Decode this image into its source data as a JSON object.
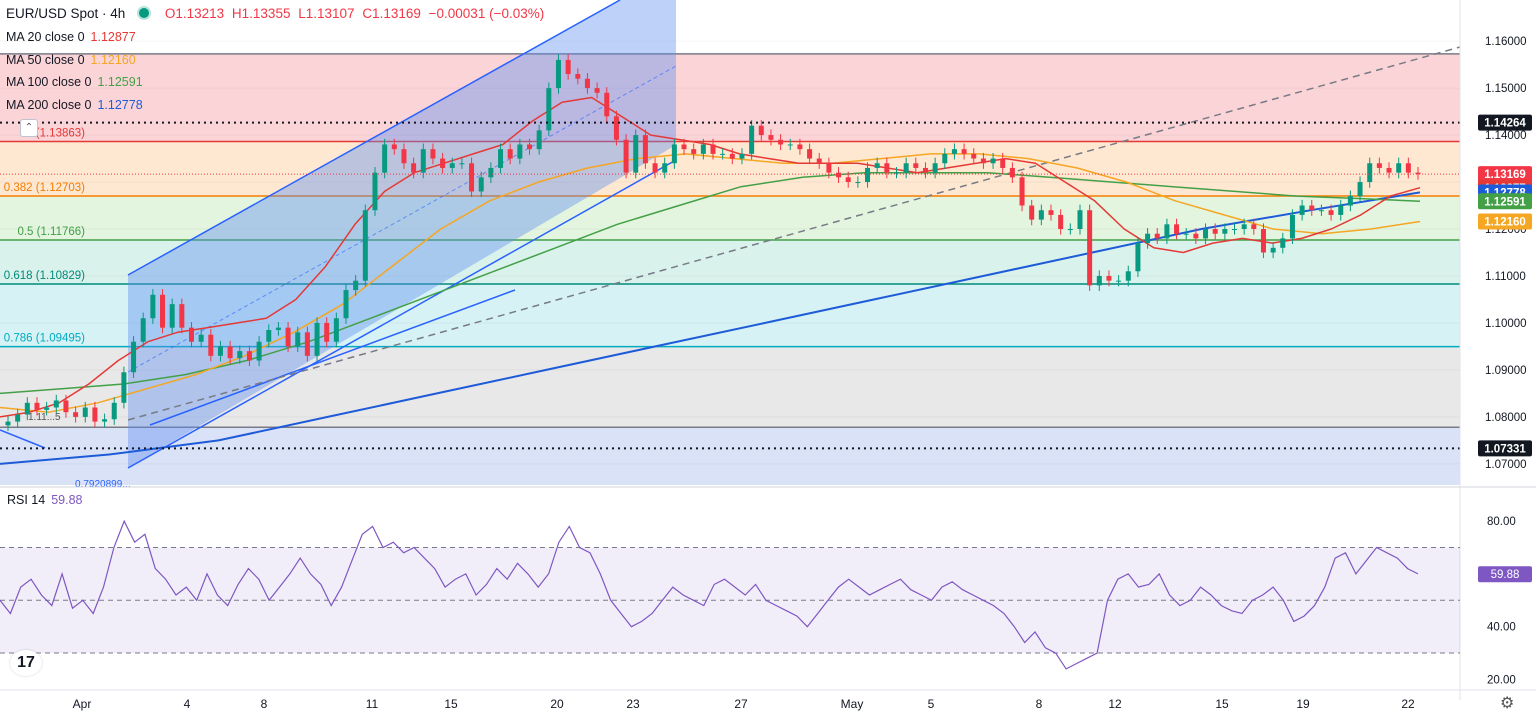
{
  "header": {
    "symbol": "EUR/USD Spot · 4h",
    "open": "O1.13213",
    "high": "H1.13355",
    "low": "L1.13107",
    "close": "C1.13169",
    "change": "−0.00031 (−0.03%)"
  },
  "legend": {
    "ma": [
      {
        "label": "MA 20 close 0",
        "value": "1.12877",
        "color": "#e53935"
      },
      {
        "label": "MA 50 close 0",
        "value": "1.12160",
        "color": "#f5a623"
      },
      {
        "label": "MA 100 close 0",
        "value": "1.12591",
        "color": "#43a047"
      },
      {
        "label": "MA 200 close 0",
        "value": "1.12778",
        "color": "#1e5bd8"
      }
    ],
    "rsi_label": "RSI 14",
    "rsi_value": "59.88"
  },
  "colors": {
    "up": "#089981",
    "down": "#f23645",
    "rsi": "#7e57c2",
    "ma20": "#e53935",
    "ma50": "#f5a623",
    "ma100": "#43a047",
    "ma200": "#1e5bd8"
  },
  "icons": [
    "tradingview-logo-icon",
    "settings-gear-icon",
    "collapse-chevron-icon",
    "status-dot-icon"
  ],
  "chart_data": [
    {
      "type": "candlestick",
      "title": "EUR/USD Spot · 4h",
      "ylim": [
        1.0655,
        1.1645
      ],
      "y_ticks": [
        "1.16000",
        "1.15000",
        "1.14000",
        "1.13000",
        "1.12000",
        "1.11000",
        "1.10000",
        "1.09000",
        "1.08000",
        "1.07000"
      ],
      "x_ticks": [
        "Apr",
        "4",
        "8",
        "11",
        "15",
        "20",
        "23",
        "27",
        "May",
        "5",
        "8",
        "12",
        "15",
        "19",
        "22"
      ],
      "price_labels": [
        {
          "value": 1.14264,
          "text": "1.14264",
          "bg": "#131722"
        },
        {
          "value": 1.13169,
          "text": "1.13169",
          "bg": "#f23645"
        },
        {
          "value": 1.12877,
          "text": "1.12877",
          "bg": "#e53935"
        },
        {
          "value": 1.12778,
          "text": "1.12778",
          "bg": "#1e5bd8"
        },
        {
          "value": 1.12591,
          "text": "1.12591",
          "bg": "#43a047"
        },
        {
          "value": 1.1216,
          "text": "1.12160",
          "bg": "#f5a623"
        },
        {
          "value": 1.07331,
          "text": "1.07331",
          "bg": "#131722"
        }
      ],
      "fib_levels": [
        {
          "label": "0.382 (1.12703)",
          "value": 1.12703,
          "color": "#f57c00"
        },
        {
          "label": "0.5 (1.11766)",
          "value": 1.11766,
          "color": "#43a047"
        },
        {
          "label": "0.618 (1.10829)",
          "value": 1.10829,
          "color": "#00897b"
        },
        {
          "label": "0.786 (1.09495)",
          "value": 1.09495,
          "color": "#00acc1"
        },
        {
          "label": "(1.13863)",
          "value": 1.13863,
          "color": "#e53935"
        }
      ],
      "fib_top": 1.1573,
      "fib_bottom": 1.0778,
      "dotted_levels": [
        1.14264,
        1.07331
      ],
      "fib_bottom_label": "0.7920899...",
      "left_small_label": "1.11...5",
      "close_series": [
        1.079,
        1.0805,
        1.083,
        1.0815,
        1.082,
        1.0835,
        1.081,
        1.08,
        1.082,
        1.079,
        1.0795,
        1.083,
        1.0895,
        1.096,
        1.101,
        1.106,
        1.099,
        1.104,
        1.099,
        1.096,
        1.0975,
        1.093,
        1.095,
        1.0925,
        1.094,
        1.092,
        1.096,
        1.0985,
        1.099,
        1.095,
        1.098,
        1.093,
        1.1,
        1.096,
        1.101,
        1.107,
        1.109,
        1.124,
        1.132,
        1.138,
        1.137,
        1.134,
        1.132,
        1.137,
        1.135,
        1.133,
        1.134,
        1.134,
        1.128,
        1.131,
        1.133,
        1.137,
        1.135,
        1.138,
        1.137,
        1.141,
        1.15,
        1.156,
        1.153,
        1.152,
        1.15,
        1.149,
        1.144,
        1.139,
        1.132,
        1.14,
        1.134,
        1.132,
        1.134,
        1.138,
        1.137,
        1.136,
        1.138,
        1.136,
        1.136,
        1.135,
        1.136,
        1.142,
        1.14,
        1.139,
        1.138,
        1.138,
        1.137,
        1.135,
        1.134,
        1.132,
        1.131,
        1.13,
        1.13,
        1.133,
        1.134,
        1.132,
        1.132,
        1.134,
        1.133,
        1.132,
        1.134,
        1.136,
        1.137,
        1.136,
        1.135,
        1.134,
        1.135,
        1.133,
        1.131,
        1.125,
        1.122,
        1.124,
        1.123,
        1.12,
        1.12,
        1.124,
        1.108,
        1.11,
        1.109,
        1.109,
        1.111,
        1.117,
        1.119,
        1.118,
        1.121,
        1.119,
        1.119,
        1.118,
        1.12,
        1.119,
        1.12,
        1.12,
        1.121,
        1.12,
        1.115,
        1.116,
        1.118,
        1.123,
        1.125,
        1.124,
        1.124,
        1.123,
        1.125,
        1.127,
        1.13,
        1.134,
        1.133,
        1.132,
        1.134,
        1.132,
        1.1317
      ],
      "ma20_series": [
        1.08,
        1.081,
        1.083,
        1.087,
        1.092,
        1.096,
        1.098,
        1.099,
        1.1,
        1.101,
        1.105,
        1.112,
        1.121,
        1.128,
        1.132,
        1.134,
        1.136,
        1.138,
        1.143,
        1.147,
        1.148,
        1.144,
        1.14,
        1.139,
        1.138,
        1.136,
        1.135,
        1.134,
        1.134,
        1.134,
        1.133,
        1.132,
        1.133,
        1.134,
        1.135,
        1.134,
        1.13,
        1.126,
        1.12,
        1.116,
        1.115,
        1.117,
        1.118,
        1.117,
        1.118,
        1.12,
        1.123,
        1.127,
        1.1288
      ],
      "ma50_series": [
        1.082,
        1.081,
        1.083,
        1.086,
        1.089,
        1.093,
        1.098,
        1.104,
        1.112,
        1.12,
        1.126,
        1.13,
        1.133,
        1.135,
        1.136,
        1.135,
        1.134,
        1.134,
        1.135,
        1.136,
        1.136,
        1.135,
        1.133,
        1.13,
        1.126,
        1.123,
        1.12,
        1.119,
        1.12,
        1.1216
      ],
      "ma100_series": [
        1.085,
        1.086,
        1.087,
        1.089,
        1.092,
        1.096,
        1.101,
        1.106,
        1.111,
        1.116,
        1.121,
        1.125,
        1.129,
        1.131,
        1.132,
        1.132,
        1.132,
        1.131,
        1.13,
        1.129,
        1.128,
        1.127,
        1.1265,
        1.1259
      ],
      "ma200_series": [
        1.07,
        1.072,
        1.075,
        1.08,
        1.085,
        1.09,
        1.095,
        1.1,
        1.105,
        1.11,
        1.115,
        1.12,
        1.124,
        1.1278
      ]
    },
    {
      "type": "line",
      "title": "RSI 14",
      "ylim": [
        16,
        88
      ],
      "y_ticks": [
        "80.00",
        "40.00",
        "20.00"
      ],
      "bands": [
        70,
        50,
        30
      ],
      "last_value": "59.88",
      "series": [
        {
          "name": "RSI 14",
          "values": [
            50,
            45,
            55,
            58,
            52,
            48,
            60,
            47,
            50,
            45,
            55,
            70,
            80,
            72,
            75,
            62,
            58,
            52,
            55,
            50,
            60,
            52,
            48,
            56,
            62,
            58,
            50,
            55,
            60,
            66,
            60,
            56,
            48,
            55,
            65,
            75,
            78,
            70,
            72,
            68,
            70,
            66,
            62,
            55,
            58,
            60,
            52,
            56,
            62,
            58,
            64,
            60,
            55,
            60,
            72,
            78,
            70,
            68,
            60,
            50,
            45,
            40,
            42,
            45,
            50,
            55,
            52,
            50,
            48,
            56,
            58,
            55,
            52,
            56,
            50,
            48,
            46,
            44,
            40,
            45,
            50,
            55,
            58,
            55,
            52,
            54,
            56,
            58,
            54,
            52,
            50,
            55,
            57,
            54,
            52,
            50,
            48,
            45,
            40,
            34,
            38,
            32,
            30,
            24,
            26,
            28,
            30,
            50,
            58,
            60,
            55,
            56,
            60,
            52,
            48,
            50,
            55,
            52,
            48,
            46,
            45,
            50,
            52,
            55,
            50,
            42,
            44,
            48,
            55,
            66,
            68,
            60,
            65,
            70,
            68,
            66,
            62,
            60
          ]
        }
      ]
    }
  ]
}
